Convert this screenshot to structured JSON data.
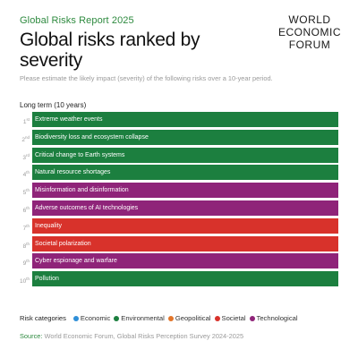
{
  "report_label": "Global Risks Report 2025",
  "title": "Global risks ranked by severity",
  "logo": [
    "WORLD",
    "ECONOMIC",
    "FORUM"
  ],
  "question": "Please estimate the likely impact (severity) of the following risks over a 10-year period.",
  "section_label": "Long term (10 years)",
  "colors": {
    "Economic": "#2f8fd8",
    "Environmental": "#1c7f3f",
    "Geopolitical": "#e2752a",
    "Societal": "#d8322b",
    "Technological": "#8f2479"
  },
  "chart_data": {
    "type": "table",
    "rows": [
      {
        "rank": "1",
        "suffix": "st",
        "label": "Extreme weather events",
        "category": "Environmental"
      },
      {
        "rank": "2",
        "suffix": "nd",
        "label": "Biodiversity loss and ecosystem collapse",
        "category": "Environmental"
      },
      {
        "rank": "3",
        "suffix": "rd",
        "label": "Critical change to Earth systems",
        "category": "Environmental"
      },
      {
        "rank": "4",
        "suffix": "th",
        "label": "Natural resource shortages",
        "category": "Environmental"
      },
      {
        "rank": "5",
        "suffix": "th",
        "label": "Misinformation and disinformation",
        "category": "Technological"
      },
      {
        "rank": "6",
        "suffix": "th",
        "label": "Adverse outcomes of AI technologies",
        "category": "Technological"
      },
      {
        "rank": "7",
        "suffix": "th",
        "label": "Inequality",
        "category": "Societal"
      },
      {
        "rank": "8",
        "suffix": "th",
        "label": "Societal polarization",
        "category": "Societal"
      },
      {
        "rank": "9",
        "suffix": "th",
        "label": "Cyber espionage and warfare",
        "category": "Technological"
      },
      {
        "rank": "10",
        "suffix": "th",
        "label": "Pollution",
        "category": "Environmental"
      }
    ]
  },
  "legend": {
    "title": "Risk categories",
    "items": [
      "Economic",
      "Environmental",
      "Geopolitical",
      "Societal",
      "Technological"
    ]
  },
  "source": {
    "prefix": "Source:",
    "text": "World Economic Forum, Global Risks Perception Survey 2024-2025"
  }
}
